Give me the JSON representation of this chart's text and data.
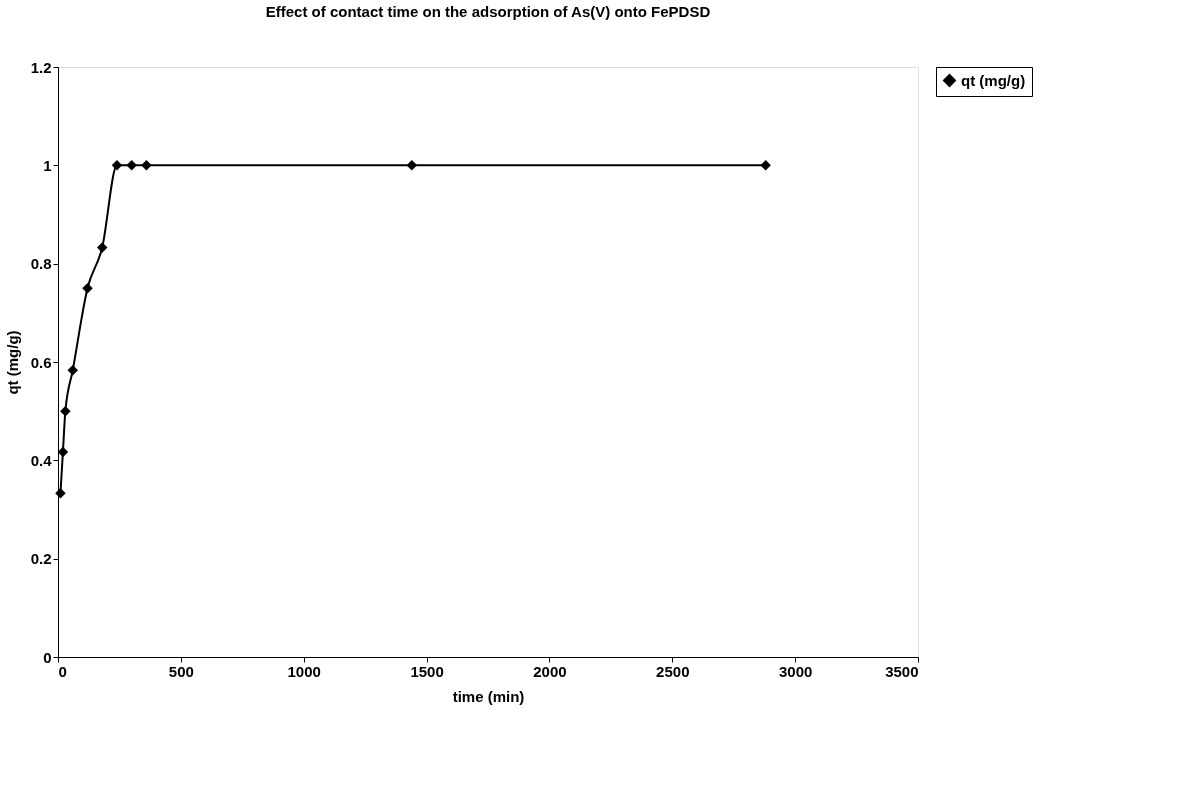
{
  "chart_data": {
    "type": "line",
    "title": "Effect of contact time on the adsorption of As(V) onto FePDSD",
    "xlabel": "time (min)",
    "ylabel": "qt (mg/g)",
    "x": [
      10,
      20,
      30,
      60,
      120,
      180,
      240,
      300,
      360,
      1440,
      2880
    ],
    "series": [
      {
        "name": "qt (mg/g)",
        "color": "#000000",
        "values": [
          0.333,
          0.417,
          0.5,
          0.583,
          0.75,
          0.833,
          1,
          1,
          1,
          1,
          1
        ]
      }
    ],
    "xlim": [
      0,
      3500
    ],
    "xticks": [
      0,
      500,
      1000,
      1500,
      2000,
      2500,
      3000,
      3500
    ],
    "ylim": [
      0,
      1.2
    ],
    "yticks": [
      0,
      0.2,
      0.4,
      0.6,
      0.8,
      1,
      1.2
    ],
    "grid": false,
    "legend": "right",
    "marker": "diamond",
    "line_style": "solid"
  }
}
